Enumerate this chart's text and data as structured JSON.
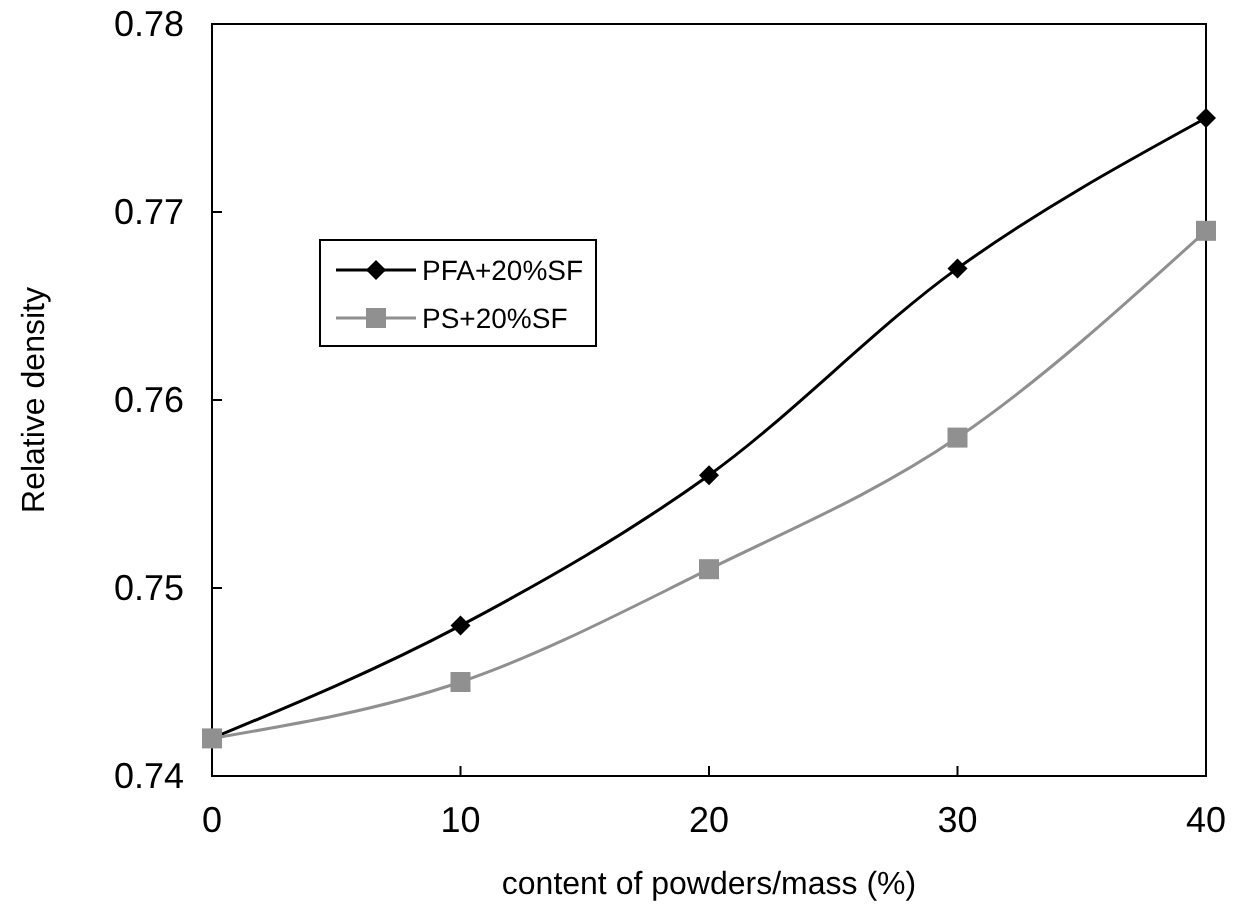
{
  "chart_data": {
    "type": "line",
    "xlabel": "content of powders/mass (%)",
    "ylabel": "Relative density",
    "x": [
      0,
      10,
      20,
      30,
      40
    ],
    "series": [
      {
        "name": "PFA+20%SF",
        "color": "#000000",
        "marker": "diamond",
        "values": [
          0.742,
          0.748,
          0.756,
          0.767,
          0.775
        ]
      },
      {
        "name": "PS+20%SF",
        "color": "#909090",
        "marker": "square",
        "values": [
          0.742,
          0.745,
          0.751,
          0.758,
          0.769
        ]
      }
    ],
    "xlim": [
      0,
      40
    ],
    "xticks": [
      0,
      10,
      20,
      30,
      40
    ],
    "ylim": [
      0.74,
      0.78
    ],
    "yticks": [
      0.74,
      0.75,
      0.76,
      0.77,
      0.78
    ],
    "legend": "top left",
    "grid": false
  }
}
